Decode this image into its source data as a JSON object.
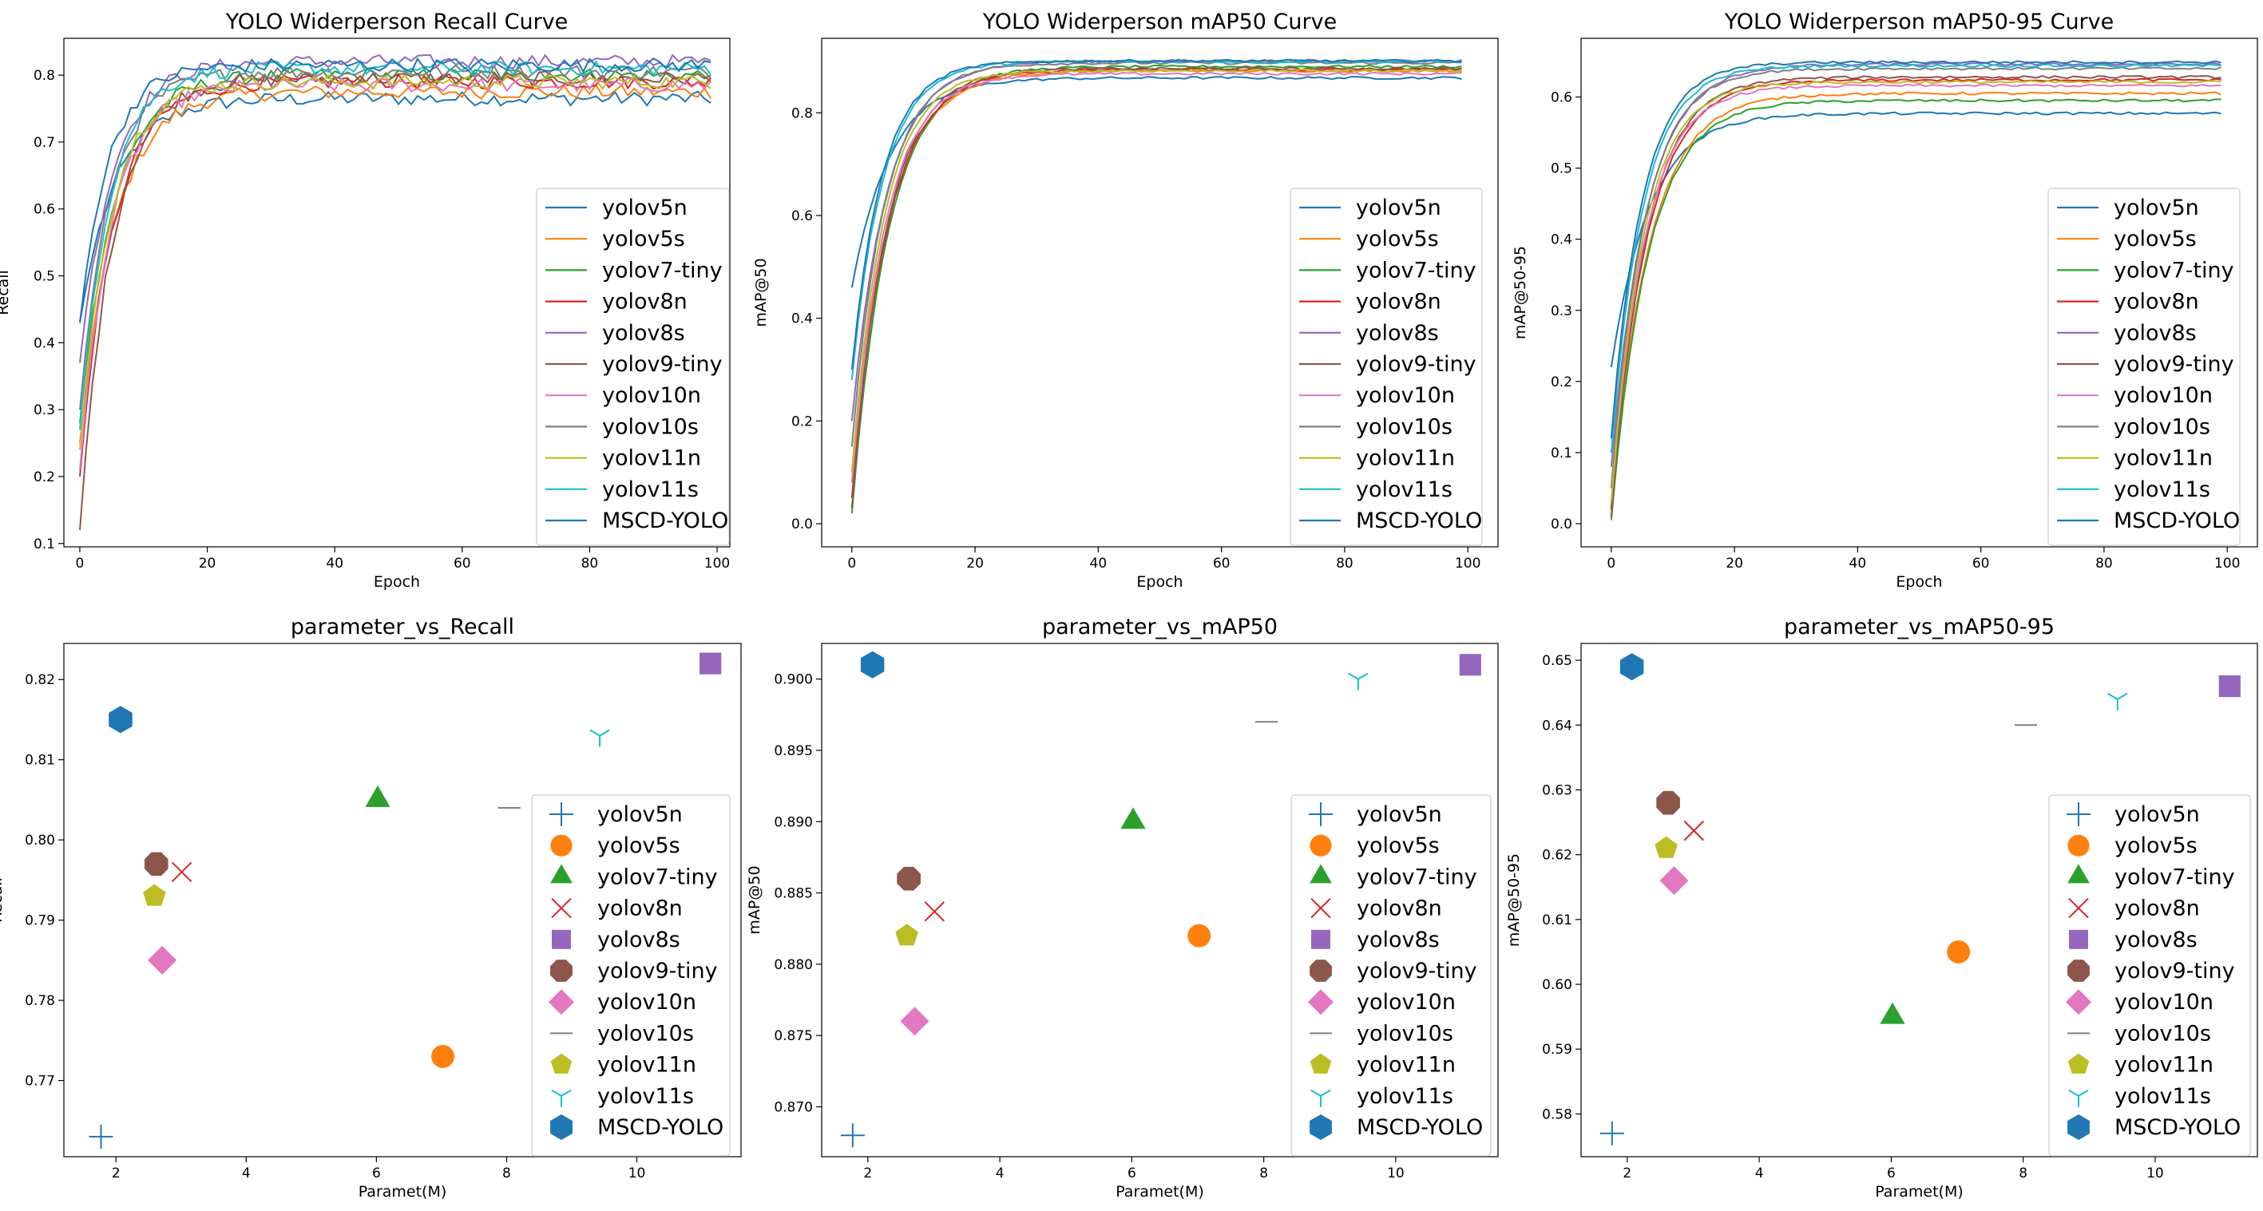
{
  "chart_data": [
    {
      "type": "line",
      "title": "YOLO Widerperson Recall Curve",
      "xlabel": "Epoch",
      "ylabel": "Recall",
      "xlim": [
        -2.5,
        102
      ],
      "ylim": [
        0.095,
        0.855
      ],
      "xticks": [
        0,
        20,
        40,
        60,
        80,
        100
      ],
      "yticks": [
        0.1,
        0.2,
        0.3,
        0.4,
        0.5,
        0.6,
        0.7,
        0.8
      ],
      "legend_location": "lower-right",
      "series": [
        {
          "name": "yolov5n",
          "color": "#1f77b4",
          "start": 0.43,
          "final": 0.765
        },
        {
          "name": "yolov5s",
          "color": "#ff7f0e",
          "start": 0.25,
          "final": 0.775
        },
        {
          "name": "yolov7-tiny",
          "color": "#2ca02c",
          "start": 0.28,
          "final": 0.8
        },
        {
          "name": "yolov8n",
          "color": "#d62728",
          "start": 0.2,
          "final": 0.79
        },
        {
          "name": "yolov8s",
          "color": "#9467bd",
          "start": 0.37,
          "final": 0.82
        },
        {
          "name": "yolov9-tiny",
          "color": "#8c564b",
          "start": 0.12,
          "final": 0.795
        },
        {
          "name": "yolov10n",
          "color": "#e377c2",
          "start": 0.21,
          "final": 0.785
        },
        {
          "name": "yolov10s",
          "color": "#7f7f7f",
          "start": 0.3,
          "final": 0.805
        },
        {
          "name": "yolov11n",
          "color": "#bcbd22",
          "start": 0.24,
          "final": 0.79
        },
        {
          "name": "yolov11s",
          "color": "#17becf",
          "start": 0.27,
          "final": 0.81
        },
        {
          "name": "MSCD-YOLO",
          "color": "#1f77b4",
          "start": 0.43,
          "final": 0.815
        }
      ]
    },
    {
      "type": "line",
      "title": "YOLO Widerperson mAP50 Curve",
      "xlabel": "Epoch",
      "ylabel": "mAP@50",
      "xlim": [
        -4.9,
        104.9
      ],
      "ylim": [
        -0.045,
        0.945
      ],
      "xticks": [
        0,
        20,
        40,
        60,
        80,
        100
      ],
      "yticks": [
        0.0,
        0.2,
        0.4,
        0.6,
        0.8
      ],
      "legend_location": "lower-right",
      "series": [
        {
          "name": "yolov5n",
          "color": "#1f77b4",
          "start": 0.46,
          "final": 0.868
        },
        {
          "name": "yolov5s",
          "color": "#ff7f0e",
          "start": 0.1,
          "final": 0.882
        },
        {
          "name": "yolov7-tiny",
          "color": "#2ca02c",
          "start": 0.02,
          "final": 0.89
        },
        {
          "name": "yolov8n",
          "color": "#d62728",
          "start": 0.05,
          "final": 0.884
        },
        {
          "name": "yolov8s",
          "color": "#9467bd",
          "start": 0.2,
          "final": 0.901
        },
        {
          "name": "yolov9-tiny",
          "color": "#8c564b",
          "start": 0.03,
          "final": 0.886
        },
        {
          "name": "yolov10n",
          "color": "#e377c2",
          "start": 0.08,
          "final": 0.876
        },
        {
          "name": "yolov10s",
          "color": "#7f7f7f",
          "start": 0.15,
          "final": 0.897
        },
        {
          "name": "yolov11n",
          "color": "#bcbd22",
          "start": 0.1,
          "final": 0.882
        },
        {
          "name": "yolov11s",
          "color": "#17becf",
          "start": 0.28,
          "final": 0.9
        },
        {
          "name": "MSCD-YOLO",
          "color": "#1f77b4",
          "start": 0.3,
          "final": 0.901
        }
      ]
    },
    {
      "type": "line",
      "title": "YOLO Widerperson mAP50-95 Curve",
      "xlabel": "Epoch",
      "ylabel": "mAP@50-95",
      "xlim": [
        -4.9,
        104.9
      ],
      "ylim": [
        -0.0325,
        0.6825
      ],
      "xticks": [
        0,
        20,
        40,
        60,
        80,
        100
      ],
      "yticks": [
        0.0,
        0.1,
        0.2,
        0.3,
        0.4,
        0.5,
        0.6
      ],
      "legend_location": "lower-right",
      "series": [
        {
          "name": "yolov5n",
          "color": "#1f77b4",
          "start": 0.22,
          "final": 0.577
        },
        {
          "name": "yolov5s",
          "color": "#ff7f0e",
          "start": 0.02,
          "final": 0.605
        },
        {
          "name": "yolov7-tiny",
          "color": "#2ca02c",
          "start": 0.005,
          "final": 0.595
        },
        {
          "name": "yolov8n",
          "color": "#d62728",
          "start": 0.02,
          "final": 0.624
        },
        {
          "name": "yolov8s",
          "color": "#9467bd",
          "start": 0.08,
          "final": 0.646
        },
        {
          "name": "yolov9-tiny",
          "color": "#8c564b",
          "start": 0.01,
          "final": 0.628
        },
        {
          "name": "yolov10n",
          "color": "#e377c2",
          "start": 0.03,
          "final": 0.616
        },
        {
          "name": "yolov10s",
          "color": "#7f7f7f",
          "start": 0.05,
          "final": 0.64
        },
        {
          "name": "yolov11n",
          "color": "#bcbd22",
          "start": 0.03,
          "final": 0.621
        },
        {
          "name": "yolov11s",
          "color": "#17becf",
          "start": 0.1,
          "final": 0.644
        },
        {
          "name": "MSCD-YOLO",
          "color": "#1f77b4",
          "start": 0.12,
          "final": 0.649
        }
      ]
    },
    {
      "type": "scatter",
      "title": "parameter_vs_Recall",
      "xlabel": "Paramet(M)",
      "ylabel": "Recall",
      "xlim": [
        1.2,
        11.6
      ],
      "ylim": [
        0.7605,
        0.8245
      ],
      "xticks": [
        2,
        4,
        6,
        8,
        10
      ],
      "yticks": [
        0.77,
        0.78,
        0.79,
        0.8,
        0.81,
        0.82
      ],
      "legend_location": "lower-right",
      "points": [
        {
          "name": "yolov5n",
          "marker": "plus",
          "color": "#1f77b4",
          "x": 1.77,
          "y": 0.763
        },
        {
          "name": "yolov5s",
          "marker": "circle",
          "color": "#ff7f0e",
          "x": 7.02,
          "y": 0.773
        },
        {
          "name": "yolov7-tiny",
          "marker": "triangle",
          "color": "#2ca02c",
          "x": 6.02,
          "y": 0.805
        },
        {
          "name": "yolov8n",
          "marker": "x",
          "color": "#d62728",
          "x": 3.01,
          "y": 0.796
        },
        {
          "name": "yolov8s",
          "marker": "square",
          "color": "#9467bd",
          "x": 11.13,
          "y": 0.822
        },
        {
          "name": "yolov9-tiny",
          "marker": "octagon",
          "color": "#8c564b",
          "x": 2.62,
          "y": 0.797
        },
        {
          "name": "yolov10n",
          "marker": "diamond",
          "color": "#e377c2",
          "x": 2.71,
          "y": 0.785
        },
        {
          "name": "yolov10s",
          "marker": "hline",
          "color": "#7f7f7f",
          "x": 8.04,
          "y": 0.804
        },
        {
          "name": "yolov11n",
          "marker": "pentagon",
          "color": "#bcbd22",
          "x": 2.59,
          "y": 0.793
        },
        {
          "name": "yolov11s",
          "marker": "tri",
          "color": "#17becf",
          "x": 9.43,
          "y": 0.813
        },
        {
          "name": "MSCD-YOLO",
          "marker": "hexagon",
          "color": "#1f77b4",
          "x": 2.07,
          "y": 0.815
        }
      ]
    },
    {
      "type": "scatter",
      "title": "parameter_vs_mAP50",
      "xlabel": "Paramet(M)",
      "ylabel": "mAP@50",
      "xlim": [
        1.3,
        11.55
      ],
      "ylim": [
        0.8665,
        0.9025
      ],
      "xticks": [
        2,
        4,
        6,
        8,
        10
      ],
      "yticks": [
        0.87,
        0.875,
        0.88,
        0.885,
        0.89,
        0.895,
        0.9
      ],
      "legend_location": "lower-right",
      "points": [
        {
          "name": "yolov5n",
          "marker": "plus",
          "color": "#1f77b4",
          "x": 1.77,
          "y": 0.868
        },
        {
          "name": "yolov5s",
          "marker": "circle",
          "color": "#ff7f0e",
          "x": 7.02,
          "y": 0.882
        },
        {
          "name": "yolov7-tiny",
          "marker": "triangle",
          "color": "#2ca02c",
          "x": 6.02,
          "y": 0.89
        },
        {
          "name": "yolov8n",
          "marker": "x",
          "color": "#d62728",
          "x": 3.01,
          "y": 0.8837
        },
        {
          "name": "yolov8s",
          "marker": "square",
          "color": "#9467bd",
          "x": 11.13,
          "y": 0.901
        },
        {
          "name": "yolov9-tiny",
          "marker": "octagon",
          "color": "#8c564b",
          "x": 2.62,
          "y": 0.886
        },
        {
          "name": "yolov10n",
          "marker": "diamond",
          "color": "#e377c2",
          "x": 2.71,
          "y": 0.876
        },
        {
          "name": "yolov10s",
          "marker": "hline",
          "color": "#7f7f7f",
          "x": 8.04,
          "y": 0.897
        },
        {
          "name": "yolov11n",
          "marker": "pentagon",
          "color": "#bcbd22",
          "x": 2.59,
          "y": 0.882
        },
        {
          "name": "yolov11s",
          "marker": "tri",
          "color": "#17becf",
          "x": 9.43,
          "y": 0.9
        },
        {
          "name": "MSCD-YOLO",
          "marker": "hexagon",
          "color": "#1f77b4",
          "x": 2.07,
          "y": 0.901
        }
      ]
    },
    {
      "type": "scatter",
      "title": "parameter_vs_mAP50-95",
      "xlabel": "Paramet(M)",
      "ylabel": "mAP@50-95",
      "xlim": [
        1.3,
        11.55
      ],
      "ylim": [
        0.5734,
        0.6526
      ],
      "xticks": [
        2,
        4,
        6,
        8,
        10
      ],
      "yticks": [
        0.58,
        0.59,
        0.6,
        0.61,
        0.62,
        0.63,
        0.64,
        0.65
      ],
      "legend_location": "lower-right",
      "points": [
        {
          "name": "yolov5n",
          "marker": "plus",
          "color": "#1f77b4",
          "x": 1.77,
          "y": 0.577
        },
        {
          "name": "yolov5s",
          "marker": "circle",
          "color": "#ff7f0e",
          "x": 7.02,
          "y": 0.605
        },
        {
          "name": "yolov7-tiny",
          "marker": "triangle",
          "color": "#2ca02c",
          "x": 6.02,
          "y": 0.595
        },
        {
          "name": "yolov8n",
          "marker": "x",
          "color": "#d62728",
          "x": 3.01,
          "y": 0.6237
        },
        {
          "name": "yolov8s",
          "marker": "square",
          "color": "#9467bd",
          "x": 11.13,
          "y": 0.646
        },
        {
          "name": "yolov9-tiny",
          "marker": "octagon",
          "color": "#8c564b",
          "x": 2.62,
          "y": 0.628
        },
        {
          "name": "yolov10n",
          "marker": "diamond",
          "color": "#e377c2",
          "x": 2.71,
          "y": 0.616
        },
        {
          "name": "yolov10s",
          "marker": "hline",
          "color": "#7f7f7f",
          "x": 8.04,
          "y": 0.64
        },
        {
          "name": "yolov11n",
          "marker": "pentagon",
          "color": "#bcbd22",
          "x": 2.59,
          "y": 0.621
        },
        {
          "name": "yolov11s",
          "marker": "tri",
          "color": "#17becf",
          "x": 9.43,
          "y": 0.644
        },
        {
          "name": "MSCD-YOLO",
          "marker": "hexagon",
          "color": "#1f77b4",
          "x": 2.07,
          "y": 0.649
        }
      ]
    }
  ]
}
